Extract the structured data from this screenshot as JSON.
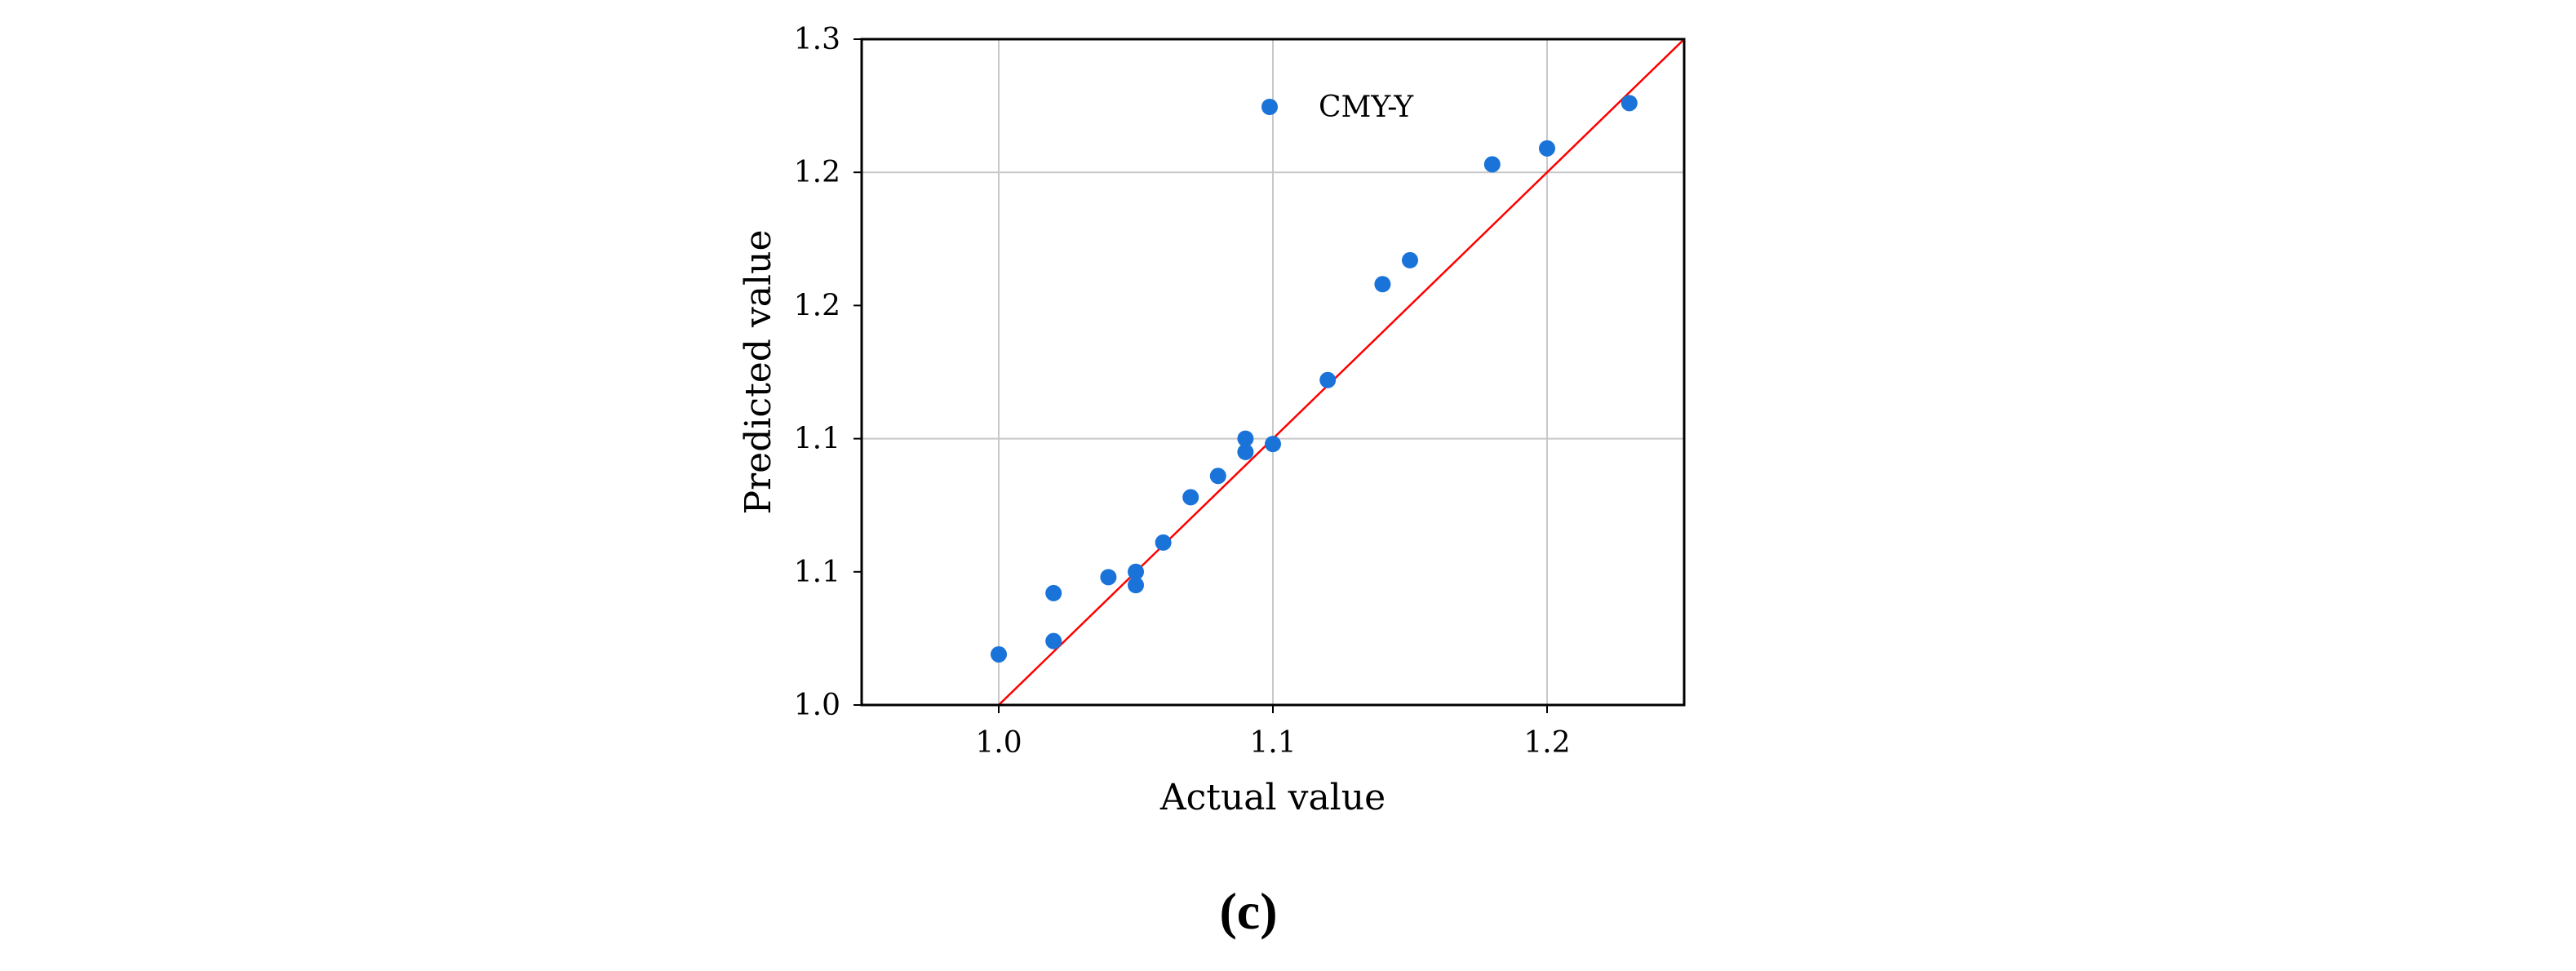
{
  "chart_data": {
    "type": "scatter",
    "title": "",
    "xlabel": "Actual value",
    "ylabel": "Predicted value",
    "xlim": [
      0.95,
      1.25
    ],
    "ylim": [
      1.0,
      1.25
    ],
    "grid": true,
    "legend_position": "top-center",
    "x_ticks": [
      {
        "value": 1.0,
        "label": "1.0"
      },
      {
        "value": 1.1,
        "label": "1.1"
      },
      {
        "value": 1.2,
        "label": "1.2"
      }
    ],
    "y_ticks": [
      {
        "value": 1.0,
        "label": "1.0"
      },
      {
        "value": 1.05,
        "label": "1.1"
      },
      {
        "value": 1.1,
        "label": "1.1"
      },
      {
        "value": 1.15,
        "label": "1.2"
      },
      {
        "value": 1.2,
        "label": "1.2"
      },
      {
        "value": 1.25,
        "label": "1.3"
      }
    ],
    "series": [
      {
        "name": "CMY-Y",
        "color": "#1a73d9",
        "points": [
          {
            "x": 1.0,
            "y": 1.019
          },
          {
            "x": 1.02,
            "y": 1.024
          },
          {
            "x": 1.02,
            "y": 1.042
          },
          {
            "x": 1.04,
            "y": 1.048
          },
          {
            "x": 1.05,
            "y": 1.045
          },
          {
            "x": 1.05,
            "y": 1.05
          },
          {
            "x": 1.06,
            "y": 1.061
          },
          {
            "x": 1.07,
            "y": 1.078
          },
          {
            "x": 1.08,
            "y": 1.086
          },
          {
            "x": 1.09,
            "y": 1.095
          },
          {
            "x": 1.09,
            "y": 1.1
          },
          {
            "x": 1.1,
            "y": 1.098
          },
          {
            "x": 1.12,
            "y": 1.122
          },
          {
            "x": 1.14,
            "y": 1.158
          },
          {
            "x": 1.15,
            "y": 1.167
          },
          {
            "x": 1.18,
            "y": 1.203
          },
          {
            "x": 1.2,
            "y": 1.209
          },
          {
            "x": 1.23,
            "y": 1.226
          }
        ]
      }
    ],
    "reference_line": {
      "from": [
        0.95,
        0.95
      ],
      "to": [
        1.25,
        1.25
      ],
      "color": "#ff0000"
    }
  },
  "caption": "(c)",
  "colors": {
    "axis": "#000000",
    "grid": "#c8c8c8",
    "point": "#1a73d9",
    "reference": "#ff0000"
  }
}
